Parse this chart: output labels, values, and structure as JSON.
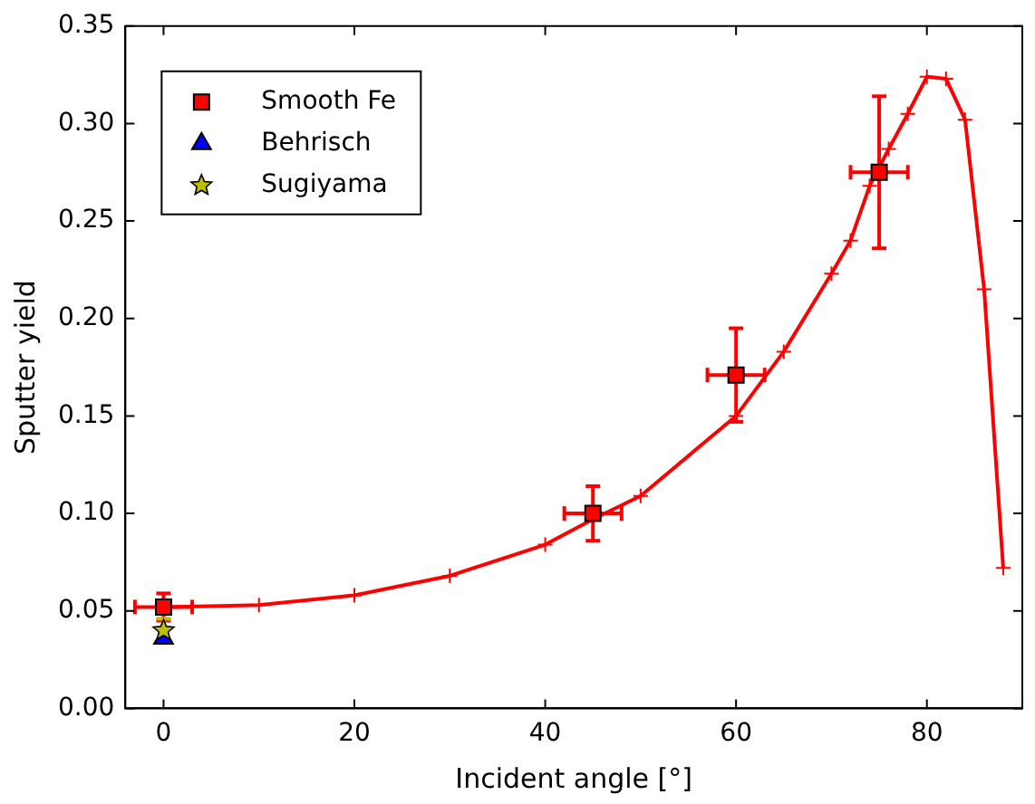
{
  "chart_data": {
    "type": "line",
    "xlabel": "Incident angle [°]",
    "ylabel": "Sputter yield",
    "xlim": [
      -4,
      90
    ],
    "xticks": [
      0,
      20,
      40,
      60,
      80
    ],
    "ylim": [
      0,
      0.35
    ],
    "yticks": [
      {
        "value": 0,
        "label": "0.00"
      },
      0.05,
      {
        "value": 0.1,
        "label": "0.10"
      },
      0.15,
      {
        "value": 0.2,
        "label": "0.20"
      },
      0.25,
      {
        "value": 0.3,
        "label": "0.30"
      },
      0.35
    ],
    "grid": false,
    "legend": "top left",
    "series": [
      {
        "type": "line",
        "color": "#ff0000",
        "marker": "cross",
        "x": [
          0,
          10,
          20,
          30,
          40,
          45,
          50,
          60,
          65,
          70,
          72,
          74,
          76,
          78,
          80,
          82,
          84,
          86,
          88
        ],
        "values": [
          0.052,
          0.053,
          0.058,
          0.068,
          0.084,
          0.097,
          0.109,
          0.15,
          0.183,
          0.223,
          0.24,
          0.268,
          0.287,
          0.305,
          0.324,
          0.323,
          0.302,
          0.215,
          0.072
        ]
      },
      {
        "type": "scatter",
        "name": "Smooth Fe",
        "color": "#ff0000",
        "marker": "square",
        "x": [
          0,
          45,
          60,
          75
        ],
        "values": [
          0.052,
          0.1,
          0.171,
          0.275
        ],
        "errors": [
          0.007,
          0.014,
          0.024,
          0.039
        ],
        "xerrors": [
          3,
          3,
          3,
          3
        ]
      },
      {
        "type": "scatter",
        "name": "Behrisch",
        "color": "#0000ff",
        "marker": "triangle",
        "x": [
          0
        ],
        "values": [
          0.036
        ]
      },
      {
        "type": "scatter",
        "name": "Sugiyama",
        "color": "#bfbf00",
        "marker": "star",
        "x": [
          0
        ],
        "values": [
          0.04
        ],
        "errors": [
          0.006
        ]
      }
    ]
  }
}
